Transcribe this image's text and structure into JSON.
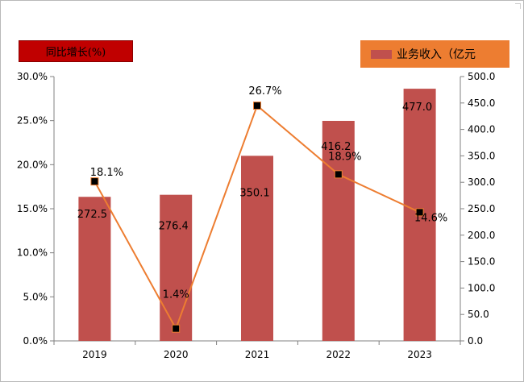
{
  "chart_data": {
    "type": "bar+line",
    "categories": [
      "2019",
      "2020",
      "2021",
      "2022",
      "2023"
    ],
    "series": [
      {
        "name": "业务收入（亿元",
        "type": "bar",
        "axis": "right",
        "values": [
          272.5,
          276.4,
          350.1,
          416.2,
          477.0
        ],
        "labels": [
          "272.5",
          "276.4",
          "350.1",
          "416.2",
          "477.0"
        ],
        "color": "#c0504d"
      },
      {
        "name": "同比增长(%)",
        "type": "line",
        "axis": "left",
        "values": [
          18.1,
          1.4,
          26.7,
          18.9,
          14.6
        ],
        "labels": [
          "18.1%",
          "1.4%",
          "26.7%",
          "18.9%",
          "14.6%"
        ],
        "color": "#ed7d31",
        "marker_color": "#000000"
      }
    ],
    "left_axis": {
      "ylim": [
        0,
        30
      ],
      "ticks": [
        "0.0%",
        "5.0%",
        "10.0%",
        "15.0%",
        "20.0%",
        "25.0%",
        "30.0%"
      ]
    },
    "right_axis": {
      "ylim": [
        0,
        500
      ],
      "ticks": [
        "0.0",
        "50.0",
        "100.0",
        "150.0",
        "200.0",
        "250.0",
        "300.0",
        "350.0",
        "400.0",
        "450.0",
        "500.0"
      ]
    },
    "grid": false,
    "legend": [
      {
        "label": "同比增长(%)",
        "position": "top-left"
      },
      {
        "label": "业务收入（亿元",
        "position": "top-right"
      }
    ]
  }
}
